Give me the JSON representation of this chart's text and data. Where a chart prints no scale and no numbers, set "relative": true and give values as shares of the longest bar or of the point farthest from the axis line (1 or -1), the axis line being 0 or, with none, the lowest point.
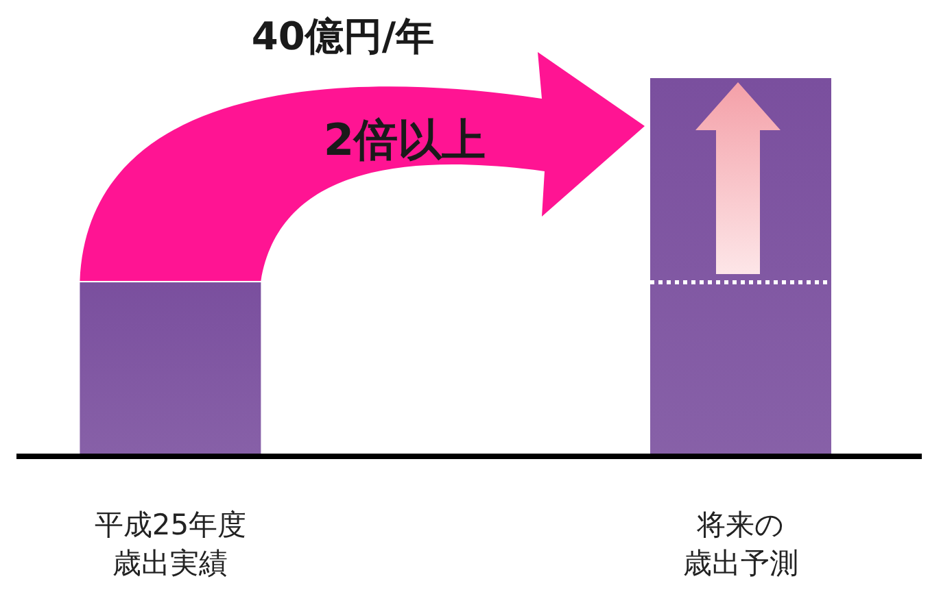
{
  "chart_data": {
    "type": "bar",
    "relative": true,
    "categories": [
      "平成25年度歳出実績",
      "将来の歳出予測"
    ],
    "values": [
      0.46,
      1
    ],
    "color": "#7a4f9e",
    "annotations": [
      "40億円/年",
      "2倍以上"
    ],
    "ref_lines": [
      {
        "axis": "y",
        "value": 0.46,
        "color": "#ffffff",
        "line_style": "dotted"
      }
    ]
  }
}
